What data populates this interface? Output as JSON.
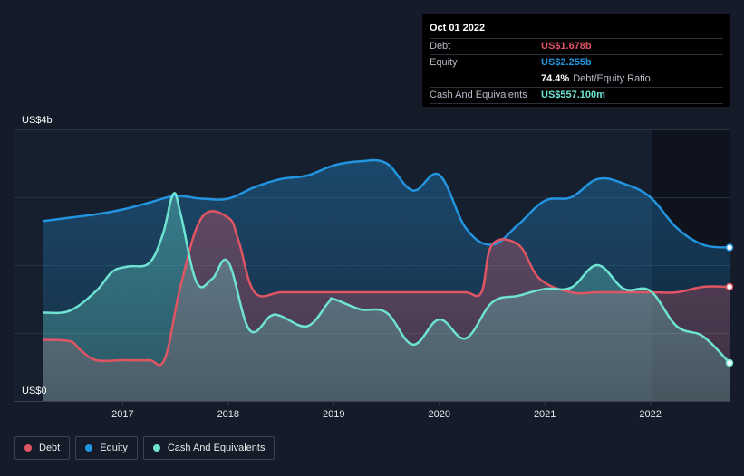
{
  "tooltip": {
    "date": "Oct 01 2022",
    "debt_label": "Debt",
    "debt_value": "US$1.678b",
    "equity_label": "Equity",
    "equity_value": "US$2.255b",
    "ratio_value": "74.4%",
    "ratio_label": "Debt/Equity Ratio",
    "cash_label": "Cash And Equivalents",
    "cash_value": "US$557.100m"
  },
  "legend": [
    {
      "label": "Debt",
      "color": "#e05564"
    },
    {
      "label": "Equity",
      "color": "#2394df"
    },
    {
      "label": "Cash And Equivalents",
      "color": "#6fe3d1"
    }
  ],
  "colors": {
    "debt": "#e05564",
    "equity": "#2394df",
    "cash": "#6fe3d1",
    "background": "#151b28"
  },
  "chart_data": {
    "type": "area",
    "title": "",
    "y_top_label": "US$4b",
    "y_bottom_label": "US$0",
    "ylim": [
      0,
      4
    ],
    "xlim": [
      2016.25,
      2022.75
    ],
    "x_ticks": [
      2017,
      2018,
      2019,
      2020,
      2021,
      2022
    ],
    "x_tick_labels": [
      "2017",
      "2018",
      "2019",
      "2020",
      "2021",
      "2022"
    ],
    "series": [
      {
        "name": "Equity",
        "x": [
          2016.25,
          2016.5,
          2016.75,
          2017.0,
          2017.25,
          2017.5,
          2017.75,
          2018.0,
          2018.25,
          2018.5,
          2018.75,
          2019.0,
          2019.25,
          2019.5,
          2019.75,
          2020.0,
          2020.25,
          2020.5,
          2020.75,
          2021.0,
          2021.25,
          2021.5,
          2021.75,
          2022.0,
          2022.25,
          2022.5,
          2022.75
        ],
        "values": [
          2.65,
          2.7,
          2.75,
          2.82,
          2.92,
          3.02,
          2.98,
          2.98,
          3.15,
          3.27,
          3.32,
          3.47,
          3.53,
          3.5,
          3.1,
          3.33,
          2.55,
          2.3,
          2.6,
          2.95,
          3.0,
          3.27,
          3.2,
          3.0,
          2.55,
          2.3,
          2.26
        ]
      },
      {
        "name": "Debt",
        "x": [
          2016.25,
          2016.5,
          2016.6,
          2016.75,
          2017.0,
          2017.25,
          2017.4,
          2017.55,
          2017.75,
          2018.0,
          2018.1,
          2018.25,
          2018.5,
          2018.75,
          2019.0,
          2019.25,
          2019.5,
          2019.75,
          2020.0,
          2020.25,
          2020.4,
          2020.5,
          2020.75,
          2020.95,
          2021.25,
          2021.5,
          2021.75,
          2022.0,
          2022.25,
          2022.5,
          2022.75
        ],
        "values": [
          0.9,
          0.88,
          0.75,
          0.6,
          0.6,
          0.6,
          0.62,
          1.7,
          2.7,
          2.7,
          2.35,
          1.6,
          1.6,
          1.6,
          1.6,
          1.6,
          1.6,
          1.6,
          1.6,
          1.6,
          1.6,
          2.3,
          2.3,
          1.8,
          1.6,
          1.6,
          1.6,
          1.6,
          1.6,
          1.68,
          1.68
        ]
      },
      {
        "name": "Cash And Equivalents",
        "x": [
          2016.25,
          2016.5,
          2016.75,
          2016.9,
          2017.05,
          2017.25,
          2017.38,
          2017.48,
          2017.55,
          2017.7,
          2017.85,
          2018.0,
          2018.2,
          2018.4,
          2018.5,
          2018.75,
          2018.95,
          2019.0,
          2019.25,
          2019.5,
          2019.75,
          2020.0,
          2020.25,
          2020.5,
          2020.75,
          2021.0,
          2021.25,
          2021.5,
          2021.75,
          2022.0,
          2022.25,
          2022.5,
          2022.75
        ],
        "values": [
          1.3,
          1.33,
          1.62,
          1.9,
          1.98,
          2.03,
          2.45,
          3.05,
          2.75,
          1.75,
          1.8,
          2.05,
          1.05,
          1.25,
          1.25,
          1.1,
          1.45,
          1.5,
          1.35,
          1.3,
          0.83,
          1.2,
          0.92,
          1.45,
          1.55,
          1.65,
          1.67,
          2.0,
          1.65,
          1.62,
          1.1,
          0.95,
          0.56
        ]
      }
    ]
  }
}
